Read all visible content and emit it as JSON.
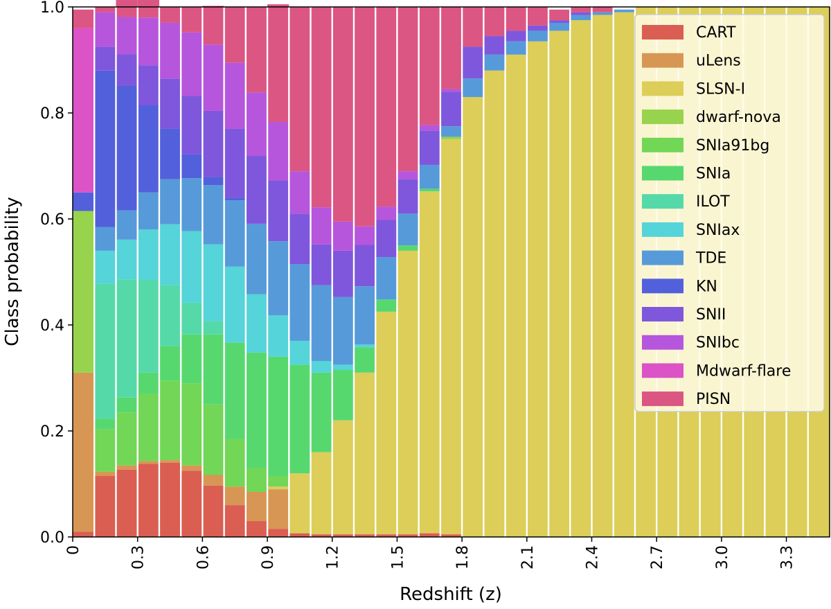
{
  "chart_data": {
    "type": "bar",
    "stacked": true,
    "title": "",
    "xlabel": "Redshift (z)",
    "ylabel": "Class probability",
    "xlim": [
      0,
      3.5
    ],
    "ylim": [
      0,
      1.0
    ],
    "bin_width": 0.1,
    "x": [
      0.05,
      0.15,
      0.25,
      0.35,
      0.45,
      0.55,
      0.65,
      0.75,
      0.85,
      0.95,
      1.05,
      1.15,
      1.25,
      1.35,
      1.45,
      1.55,
      1.65,
      1.75,
      1.85,
      1.95,
      2.05,
      2.15,
      2.25,
      2.35,
      2.45,
      2.55,
      2.65,
      2.75,
      2.85,
      2.95,
      3.05,
      3.15,
      3.25,
      3.35,
      3.45
    ],
    "x_ticks": [
      0,
      0.3,
      0.6,
      0.9,
      1.2,
      1.5,
      1.8,
      2.1,
      2.4,
      2.7,
      3.0,
      3.3
    ],
    "x_tick_labels": [
      "0",
      "0.3",
      "0.6",
      "0.9",
      "1.2",
      "1.5",
      "1.8",
      "2.1",
      "2.4",
      "2.7",
      "3.0",
      "3.3"
    ],
    "y_ticks": [
      0,
      0.2,
      0.4,
      0.6,
      0.8,
      1.0
    ],
    "y_tick_labels": [
      "0.0",
      "0.2",
      "0.4",
      "0.6",
      "0.8",
      "1.0"
    ],
    "legend_position": "top-right",
    "series": [
      {
        "name": "CART",
        "color": "#da5e52",
        "values": [
          0.01,
          0.115,
          0.127,
          0.138,
          0.14,
          0.125,
          0.097,
          0.06,
          0.03,
          0.015,
          0.007,
          0.005,
          0.005,
          0.005,
          0.005,
          0.005,
          0.007,
          0.005,
          0,
          0,
          0,
          0,
          0,
          0,
          0,
          0,
          0,
          0,
          0,
          0,
          0,
          0,
          0,
          0,
          0
        ]
      },
      {
        "name": "uLens",
        "color": "#d89654",
        "values": [
          0.3,
          0.008,
          0.008,
          0.005,
          0.005,
          0.01,
          0.02,
          0.035,
          0.055,
          0.075,
          0,
          0,
          0,
          0,
          0,
          0,
          0,
          0,
          0,
          0,
          0,
          0,
          0,
          0,
          0,
          0,
          0,
          0,
          0,
          0,
          0,
          0,
          0,
          0,
          0
        ]
      },
      {
        "name": "SLSN-I",
        "color": "#dcce58",
        "values": [
          0,
          0,
          0,
          0,
          0,
          0,
          0,
          0,
          0,
          0.005,
          0.113,
          0.155,
          0.215,
          0.305,
          0.42,
          0.535,
          0.645,
          0.745,
          0.83,
          0.88,
          0.91,
          0.935,
          0.955,
          0.975,
          0.985,
          0.99,
          1.0,
          1.0,
          1.0,
          1.0,
          1.0,
          1.0,
          1.0,
          1.0,
          1.0
        ]
      },
      {
        "name": "dwarf-nova",
        "color": "#98d34e",
        "values": [
          0.305,
          0,
          0,
          0,
          0,
          0,
          0,
          0,
          0,
          0,
          0,
          0,
          0,
          0,
          0,
          0,
          0,
          0.005,
          0,
          0,
          0,
          0,
          0,
          0,
          0,
          0,
          0,
          0,
          0,
          0,
          0,
          0,
          0,
          0,
          0
        ]
      },
      {
        "name": "SNIa91bg",
        "color": "#72d656",
        "values": [
          0,
          0.08,
          0.1,
          0.127,
          0.15,
          0.155,
          0.133,
          0.09,
          0.045,
          0.02,
          0,
          0,
          0,
          0,
          0,
          0,
          0,
          0,
          0,
          0,
          0,
          0,
          0,
          0,
          0,
          0,
          0,
          0,
          0,
          0,
          0,
          0,
          0,
          0,
          0
        ]
      },
      {
        "name": "SNIa",
        "color": "#57d86f",
        "values": [
          0,
          0.02,
          0.028,
          0.04,
          0.065,
          0.092,
          0.132,
          0.182,
          0.218,
          0.225,
          0.205,
          0.15,
          0.095,
          0.048,
          0.023,
          0.01,
          0.005,
          0,
          0,
          0,
          0,
          0,
          0,
          0,
          0,
          0,
          0,
          0,
          0,
          0,
          0,
          0,
          0,
          0,
          0
        ]
      },
      {
        "name": "ILOT",
        "color": "#55d9a8",
        "values": [
          0,
          0.255,
          0.223,
          0.175,
          0.115,
          0.06,
          0.025,
          0,
          0,
          0,
          0,
          0,
          0,
          0,
          0,
          0,
          0,
          0,
          0,
          0,
          0,
          0,
          0,
          0,
          0,
          0,
          0,
          0,
          0,
          0,
          0,
          0,
          0,
          0,
          0
        ]
      },
      {
        "name": "SNIax",
        "color": "#55d4d9",
        "values": [
          0,
          0.062,
          0.075,
          0.095,
          0.115,
          0.135,
          0.145,
          0.143,
          0.11,
          0.078,
          0.045,
          0.022,
          0.01,
          0.005,
          0,
          0,
          0,
          0,
          0,
          0,
          0,
          0,
          0,
          0,
          0,
          0,
          0,
          0,
          0,
          0,
          0,
          0,
          0,
          0,
          0
        ]
      },
      {
        "name": "TDE",
        "color": "#579ad9",
        "values": [
          0,
          0.045,
          0.055,
          0.07,
          0.085,
          0.1,
          0.112,
          0.125,
          0.133,
          0.14,
          0.145,
          0.143,
          0.128,
          0.11,
          0.08,
          0.06,
          0.045,
          0.02,
          0.035,
          0.03,
          0.025,
          0.02,
          0.015,
          0.01,
          0.005,
          0.005,
          0,
          0,
          0,
          0,
          0,
          0,
          0,
          0,
          0
        ]
      },
      {
        "name": "KN",
        "color": "#5360dc",
        "values": [
          0.035,
          0.295,
          0.235,
          0.165,
          0.095,
          0.045,
          0.015,
          0.005,
          0,
          0,
          0,
          0,
          0,
          0,
          0,
          0,
          0,
          0,
          0,
          0,
          0,
          0,
          0,
          0,
          0,
          0,
          0,
          0,
          0,
          0,
          0,
          0,
          0,
          0,
          0
        ]
      },
      {
        "name": "SNII",
        "color": "#7f57dc",
        "values": [
          0,
          0.045,
          0.06,
          0.075,
          0.095,
          0.11,
          0.125,
          0.13,
          0.128,
          0.115,
          0.095,
          0.077,
          0.087,
          0.078,
          0.07,
          0.065,
          0.065,
          0.065,
          0.06,
          0.035,
          0.02,
          0.01,
          0.005,
          0.005,
          0,
          0,
          0,
          0,
          0,
          0,
          0,
          0,
          0,
          0,
          0
        ]
      },
      {
        "name": "SNIbc",
        "color": "#b656dc",
        "values": [
          0,
          0.065,
          0.07,
          0.09,
          0.105,
          0.12,
          0.125,
          0.125,
          0.12,
          0.11,
          0.08,
          0.07,
          0.055,
          0.035,
          0.025,
          0.015,
          0.01,
          0.005,
          0,
          0,
          0,
          0,
          0,
          0,
          0,
          0,
          0,
          0,
          0,
          0,
          0,
          0,
          0,
          0,
          0
        ]
      },
      {
        "name": "Mdwarf-flare",
        "color": "#db53c6",
        "values": [
          0.31,
          0,
          0,
          0,
          0,
          0,
          0,
          0,
          0,
          0,
          0,
          0,
          0,
          0,
          0,
          0,
          0,
          0,
          0,
          0,
          0,
          0,
          0,
          0,
          0,
          0,
          0,
          0,
          0,
          0,
          0,
          0,
          0,
          0,
          0
        ]
      },
      {
        "name": "PISN",
        "color": "#db5683",
        "values": [
          0.035,
          0.01,
          0.039,
          0.038,
          0.03,
          0.048,
          0.073,
          0.105,
          0.161,
          0.222,
          0.31,
          0.378,
          0.405,
          0.414,
          0.377,
          0.31,
          0.223,
          0.155,
          0.075,
          0.055,
          0.045,
          0.035,
          0.02,
          0.01,
          0.01,
          0,
          0,
          0,
          0,
          0,
          0,
          0,
          0,
          0,
          0
        ]
      }
    ]
  }
}
